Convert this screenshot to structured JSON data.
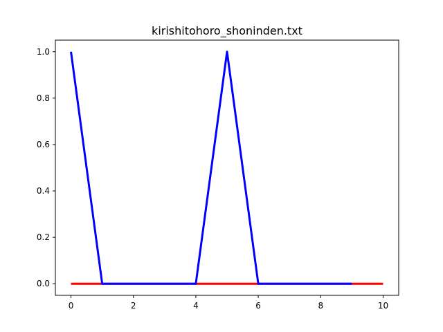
{
  "chart_data": {
    "type": "line",
    "title": "kirishitohoro_shoninden.txt",
    "xlabel": "",
    "ylabel": "",
    "xlim": [
      -0.5,
      10.5
    ],
    "ylim": [
      -0.05,
      1.05
    ],
    "grid": false,
    "xticks": [
      0,
      2,
      4,
      6,
      8,
      10
    ],
    "xtick_labels": [
      "0",
      "2",
      "4",
      "6",
      "8",
      "10"
    ],
    "yticks": [
      0.0,
      0.2,
      0.4,
      0.6,
      0.8,
      1.0
    ],
    "ytick_labels": [
      "0.0",
      "0.2",
      "0.4",
      "0.6",
      "0.8",
      "1.0"
    ],
    "series": [
      {
        "color": "#ff0000",
        "x": [
          0,
          1,
          2,
          3,
          4,
          5,
          6,
          7,
          8,
          9,
          10
        ],
        "y": [
          0,
          0,
          0,
          0,
          0,
          0,
          0,
          0,
          0,
          0,
          0
        ]
      },
      {
        "color": "#0000ff",
        "x": [
          0,
          1,
          2,
          3,
          4,
          5,
          6,
          7,
          8,
          9
        ],
        "y": [
          1,
          0,
          0,
          0,
          0,
          1,
          0,
          0,
          0,
          0
        ]
      }
    ]
  }
}
